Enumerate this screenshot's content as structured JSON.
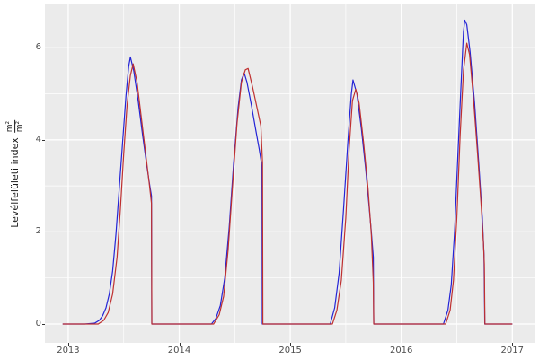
{
  "figure": {
    "background": "#ffffff"
  },
  "panel": {
    "background": "#ebebeb",
    "grid_color": "#ffffff"
  },
  "axes": {
    "y_title_text": "Levélfelületi index",
    "y_title_frac_num": "m²",
    "y_title_frac_den": "m²",
    "x_tick_labels": [
      "2013",
      "2014",
      "2015",
      "2016",
      "2017"
    ],
    "y_tick_labels": [
      "0",
      "2",
      "4",
      "6"
    ],
    "tick_text_color": "#4d4d4d"
  },
  "chart_data": {
    "type": "line",
    "title": "",
    "xlabel": "",
    "ylabel": "Levélfelületi index (m²/m²)",
    "x_range": [
      2012.79,
      2017.2
    ],
    "y_range": [
      -0.41,
      6.94
    ],
    "x_major_ticks": [
      2013,
      2014,
      2015,
      2016,
      2017
    ],
    "x_minor_ticks": [
      2013.5,
      2014.5,
      2015.5,
      2016.5
    ],
    "y_major_ticks": [
      0,
      2,
      4,
      6
    ],
    "y_minor_ticks": [
      1,
      3,
      5
    ],
    "grid": true,
    "legend": "none",
    "series": [
      {
        "name": "blue-series",
        "color": "#2323d6",
        "points": [
          [
            2012.95,
            0
          ],
          [
            2013.05,
            0
          ],
          [
            2013.15,
            0
          ],
          [
            2013.24,
            0.02
          ],
          [
            2013.28,
            0.08
          ],
          [
            2013.31,
            0.18
          ],
          [
            2013.34,
            0.35
          ],
          [
            2013.37,
            0.65
          ],
          [
            2013.4,
            1.15
          ],
          [
            2013.43,
            1.95
          ],
          [
            2013.46,
            2.95
          ],
          [
            2013.49,
            3.95
          ],
          [
            2013.52,
            4.95
          ],
          [
            2013.545,
            5.6
          ],
          [
            2013.56,
            5.8
          ],
          [
            2013.59,
            5.5
          ],
          [
            2013.63,
            4.85
          ],
          [
            2013.67,
            4.1
          ],
          [
            2013.71,
            3.4
          ],
          [
            2013.735,
            3.0
          ],
          [
            2013.75,
            2.78
          ],
          [
            2013.753,
            0
          ],
          [
            2013.9,
            0
          ],
          [
            2014.1,
            0
          ],
          [
            2014.29,
            0
          ],
          [
            2014.33,
            0.12
          ],
          [
            2014.37,
            0.4
          ],
          [
            2014.41,
            1.0
          ],
          [
            2014.45,
            2.1
          ],
          [
            2014.49,
            3.5
          ],
          [
            2014.53,
            4.7
          ],
          [
            2014.56,
            5.3
          ],
          [
            2014.585,
            5.45
          ],
          [
            2014.61,
            5.25
          ],
          [
            2014.65,
            4.75
          ],
          [
            2014.69,
            4.2
          ],
          [
            2014.72,
            3.8
          ],
          [
            2014.745,
            3.42
          ],
          [
            2014.748,
            0
          ],
          [
            2014.9,
            0
          ],
          [
            2015.1,
            0
          ],
          [
            2015.36,
            0
          ],
          [
            2015.4,
            0.35
          ],
          [
            2015.44,
            1.1
          ],
          [
            2015.48,
            2.5
          ],
          [
            2015.52,
            4.0
          ],
          [
            2015.55,
            5.0
          ],
          [
            2015.565,
            5.3
          ],
          [
            2015.6,
            5.0
          ],
          [
            2015.64,
            4.25
          ],
          [
            2015.68,
            3.35
          ],
          [
            2015.71,
            2.55
          ],
          [
            2015.73,
            2.0
          ],
          [
            2015.748,
            1.45
          ],
          [
            2015.752,
            0
          ],
          [
            2015.9,
            0
          ],
          [
            2016.1,
            0
          ],
          [
            2016.38,
            0
          ],
          [
            2016.42,
            0.3
          ],
          [
            2016.45,
            0.85
          ],
          [
            2016.48,
            2.0
          ],
          [
            2016.51,
            3.7
          ],
          [
            2016.54,
            5.3
          ],
          [
            2016.56,
            6.35
          ],
          [
            2016.572,
            6.6
          ],
          [
            2016.59,
            6.5
          ],
          [
            2016.62,
            5.9
          ],
          [
            2016.66,
            4.8
          ],
          [
            2016.7,
            3.4
          ],
          [
            2016.73,
            2.3
          ],
          [
            2016.745,
            1.5
          ],
          [
            2016.752,
            0
          ],
          [
            2016.9,
            0
          ],
          [
            2017.0,
            0
          ]
        ]
      },
      {
        "name": "red-series",
        "color": "#bf3030",
        "points": [
          [
            2012.95,
            0
          ],
          [
            2013.1,
            0
          ],
          [
            2013.27,
            0
          ],
          [
            2013.32,
            0.08
          ],
          [
            2013.36,
            0.25
          ],
          [
            2013.4,
            0.65
          ],
          [
            2013.44,
            1.45
          ],
          [
            2013.47,
            2.5
          ],
          [
            2013.5,
            3.7
          ],
          [
            2013.53,
            4.75
          ],
          [
            2013.56,
            5.4
          ],
          [
            2013.585,
            5.65
          ],
          [
            2013.62,
            5.25
          ],
          [
            2013.66,
            4.45
          ],
          [
            2013.7,
            3.65
          ],
          [
            2013.73,
            3.05
          ],
          [
            2013.75,
            2.62
          ],
          [
            2013.753,
            0
          ],
          [
            2013.9,
            0
          ],
          [
            2014.15,
            0
          ],
          [
            2014.31,
            0
          ],
          [
            2014.36,
            0.2
          ],
          [
            2014.4,
            0.6
          ],
          [
            2014.44,
            1.6
          ],
          [
            2014.48,
            3.0
          ],
          [
            2014.52,
            4.35
          ],
          [
            2014.56,
            5.25
          ],
          [
            2014.595,
            5.52
          ],
          [
            2014.62,
            5.55
          ],
          [
            2014.66,
            5.15
          ],
          [
            2014.7,
            4.7
          ],
          [
            2014.735,
            4.3
          ],
          [
            2014.75,
            3.5
          ],
          [
            2014.753,
            0
          ],
          [
            2014.9,
            0
          ],
          [
            2015.15,
            0
          ],
          [
            2015.38,
            0
          ],
          [
            2015.42,
            0.3
          ],
          [
            2015.46,
            0.95
          ],
          [
            2015.5,
            2.3
          ],
          [
            2015.53,
            3.8
          ],
          [
            2015.56,
            4.85
          ],
          [
            2015.59,
            5.1
          ],
          [
            2015.62,
            4.8
          ],
          [
            2015.66,
            3.95
          ],
          [
            2015.7,
            2.95
          ],
          [
            2015.73,
            1.95
          ],
          [
            2015.748,
            0.9
          ],
          [
            2015.752,
            0
          ],
          [
            2015.9,
            0
          ],
          [
            2016.15,
            0
          ],
          [
            2016.4,
            0
          ],
          [
            2016.44,
            0.3
          ],
          [
            2016.47,
            0.95
          ],
          [
            2016.5,
            2.3
          ],
          [
            2016.53,
            4.1
          ],
          [
            2016.56,
            5.5
          ],
          [
            2016.59,
            6.1
          ],
          [
            2016.615,
            5.85
          ],
          [
            2016.65,
            4.9
          ],
          [
            2016.69,
            3.6
          ],
          [
            2016.72,
            2.55
          ],
          [
            2016.74,
            1.75
          ],
          [
            2016.748,
            1.3
          ],
          [
            2016.753,
            0
          ],
          [
            2016.9,
            0
          ],
          [
            2017.0,
            0
          ]
        ]
      }
    ]
  }
}
